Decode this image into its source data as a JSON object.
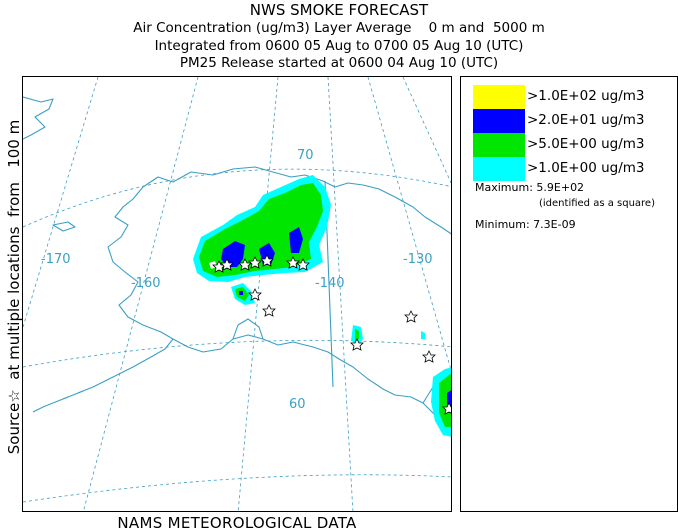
{
  "header": {
    "title": "NWS SMOKE FORECAST",
    "line1": "Air Concentration (ug/m3) Layer Average    0 m and  5000 m",
    "line2": "Integrated from 0600 05 Aug to 0700 05 Aug 10 (UTC)",
    "line3": "PM25 Release started at 0600 04 Aug 10 (UTC)"
  },
  "side_label": "Source☆  at multiple locations  from   100 m",
  "footer": "NAMS METEOROLOGICAL DATA",
  "map": {
    "graticule_labels": {
      "lon_170": "-170",
      "lon_160": "-160",
      "lon_140": "-140",
      "lon_130": "-130",
      "lat_70": "70",
      "lat_60": "60"
    },
    "colors": {
      "coast": "#3a9fc4",
      "grid": "#3a9fc4",
      "yellow": "#ffff00",
      "blue": "#0000ff",
      "green": "#00e600",
      "cyan": "#00ffff"
    }
  },
  "legend": {
    "items": [
      {
        "label": ">1.0E+02 ug/m3",
        "color": "#ffff00"
      },
      {
        "label": ">2.0E+01 ug/m3",
        "color": "#0000ff"
      },
      {
        "label": ">5.0E+00 ug/m3",
        "color": "#00e600"
      },
      {
        "label": ">1.0E+00 ug/m3",
        "color": "#00ffff"
      }
    ],
    "maximum_label": "Maximum: 5.9E+02",
    "maximum_note": "(identified as a square)",
    "minimum_label": "Minimum: 7.3E-09"
  }
}
